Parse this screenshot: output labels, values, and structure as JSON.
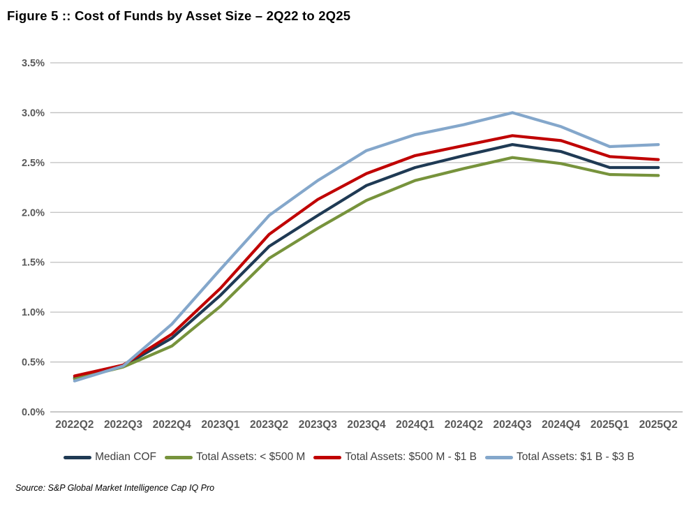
{
  "title": "Figure 5 :: Cost of Funds by Asset Size – 2Q22 to 2Q25",
  "source": "Source: S&P Global Market Intelligence Cap IQ Pro",
  "colors": {
    "grid": "#BFBFBF",
    "axis_line": "#A6A6A6",
    "axis_text": "#595959",
    "navy": "#1F3A54",
    "green": "#77933C",
    "red": "#C00000",
    "light_blue": "#84A7CB"
  },
  "chart_data": {
    "type": "line",
    "title": "Figure 5 :: Cost of Funds by Asset Size – 2Q22 to 2Q25",
    "xlabel": "",
    "ylabel": "",
    "ylim": [
      0,
      3.5
    ],
    "ytick_step": 0.5,
    "ytick_labels": [
      "0.0%",
      "0.5%",
      "1.0%",
      "1.5%",
      "2.0%",
      "2.5%",
      "3.0%",
      "3.5%"
    ],
    "grid": true,
    "legend_position": "bottom",
    "categories": [
      "2022Q2",
      "2022Q3",
      "2022Q4",
      "2023Q1",
      "2023Q2",
      "2023Q3",
      "2023Q4",
      "2024Q1",
      "2024Q2",
      "2024Q3",
      "2024Q4",
      "2025Q1",
      "2025Q2"
    ],
    "series": [
      {
        "name": "Median COF",
        "color": "#1F3A54",
        "values": [
          0.34,
          0.46,
          0.74,
          1.17,
          1.66,
          1.97,
          2.27,
          2.45,
          2.57,
          2.68,
          2.61,
          2.45,
          2.45
        ]
      },
      {
        "name": "Total Assets: < $500 M",
        "color": "#77933C",
        "values": [
          0.33,
          0.45,
          0.66,
          1.06,
          1.54,
          1.84,
          2.12,
          2.32,
          2.44,
          2.55,
          2.49,
          2.38,
          2.37
        ]
      },
      {
        "name": "Total Assets: $500 M - $1 B",
        "color": "#C00000",
        "values": [
          0.36,
          0.47,
          0.78,
          1.24,
          1.78,
          2.13,
          2.39,
          2.57,
          2.67,
          2.77,
          2.72,
          2.56,
          2.53
        ]
      },
      {
        "name": "Total Assets: $1 B - $3 B",
        "color": "#84A7CB",
        "values": [
          0.31,
          0.46,
          0.88,
          1.43,
          1.97,
          2.32,
          2.62,
          2.78,
          2.88,
          3.0,
          2.86,
          2.66,
          2.68
        ]
      }
    ]
  }
}
